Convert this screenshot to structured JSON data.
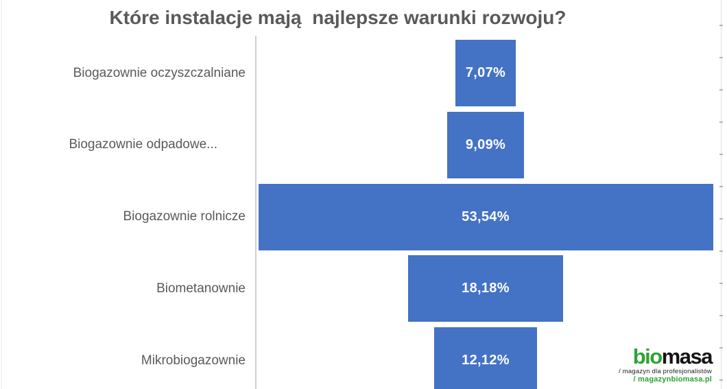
{
  "title": "Które instalacje mają  najlepsze warunki rozwoju?",
  "chart_data": {
    "type": "bar",
    "subtype": "funnel-centered-horizontal",
    "title": "Które instalacje mają  najlepsze warunki rozwoju?",
    "categories": [
      "Biogazownie oczyszczalniane",
      "Biogazownie odpadowe...",
      "Biogazownie rolnicze",
      "Biometanownie",
      "Mikrobiogazownie"
    ],
    "values": [
      7.07,
      9.09,
      53.54,
      18.18,
      12.12
    ],
    "value_labels": [
      "7,07%",
      "9,09%",
      "53,54%",
      "18,18%",
      "12,12%"
    ],
    "value_format": "percent, comma decimal separator",
    "xlabel": "",
    "ylabel": "",
    "legend": "none",
    "grid": "off",
    "max_value": 53.54,
    "bar_color": "#4472C4",
    "value_label_color": "#FFFFFF",
    "title_color": "#595959",
    "category_label_color": "#595959",
    "axis_line_color": "#CFCFCF"
  },
  "logo": {
    "word_green": "bio",
    "word_black": "masa",
    "tagline": "/ magazyn dla profesjonalistów",
    "url_line": "/ magazynbiomasa.pl",
    "green_color": "#2FA235",
    "black_color": "#141414"
  }
}
